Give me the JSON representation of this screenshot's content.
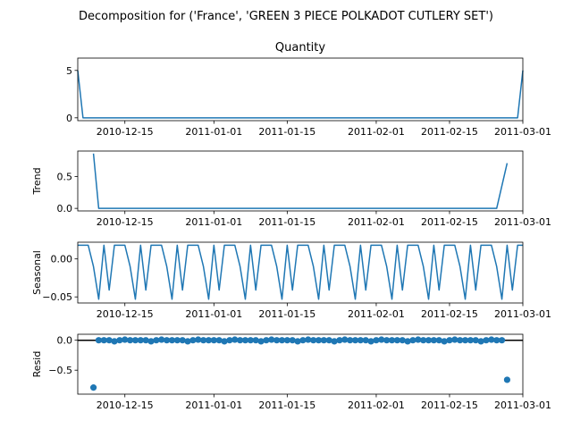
{
  "figure": {
    "suptitle": "Decomposition for ('France', 'GREEN 3 PIECE POLKADOT CUTLERY SET')"
  },
  "chart_data": [
    {
      "type": "line",
      "name": "observed",
      "title": "Quantity",
      "ylabel": "",
      "x_start": "2010-12-06",
      "x_end": "2011-03-01",
      "xticks": [
        "2010-12-15",
        "2011-01-01",
        "2011-01-15",
        "2011-02-01",
        "2011-02-15",
        "2011-03-01"
      ],
      "ylim": [
        -0.3,
        6.3
      ],
      "yticks": [
        0,
        5
      ],
      "color": "#1f77b4",
      "points": [
        {
          "x": "2010-12-06",
          "y": 5
        },
        {
          "x": "2010-12-07",
          "y": 0
        },
        {
          "x": "2011-02-28",
          "y": 0
        },
        {
          "x": "2011-03-01",
          "y": 5
        }
      ]
    },
    {
      "type": "line",
      "name": "trend",
      "title": "",
      "ylabel": "Trend",
      "x_start": "2010-12-06",
      "x_end": "2011-03-01",
      "xticks": [
        "2010-12-15",
        "2011-01-01",
        "2011-01-15",
        "2011-02-01",
        "2011-02-15",
        "2011-03-01"
      ],
      "ylim": [
        -0.04,
        0.9
      ],
      "yticks": [
        "0.0",
        "0.5"
      ],
      "color": "#1f77b4",
      "points": [
        {
          "x": "2010-12-09",
          "y": 0.86
        },
        {
          "x": "2010-12-10",
          "y": 0.0
        },
        {
          "x": "2011-02-24",
          "y": 0.0
        },
        {
          "x": "2011-02-26",
          "y": 0.71
        }
      ]
    },
    {
      "type": "line",
      "name": "seasonal",
      "title": "",
      "ylabel": "Seasonal",
      "x_start": "2010-12-06",
      "x_end": "2011-03-01",
      "xticks": [
        "2010-12-15",
        "2011-01-01",
        "2011-01-15",
        "2011-02-01",
        "2011-02-15",
        "2011-03-01"
      ],
      "ylim": [
        -0.058,
        0.022
      ],
      "yticks": [
        "0.00",
        "−0.05"
      ],
      "color": "#1f77b4",
      "period": 7,
      "weekly_pattern": [
        0.018,
        0.018,
        0.018,
        -0.01,
        -0.053,
        0.018,
        -0.041
      ]
    },
    {
      "type": "scatter",
      "name": "resid",
      "title": "",
      "ylabel": "Resid",
      "x_start": "2010-12-06",
      "x_end": "2011-03-01",
      "xticks": [
        "2010-12-15",
        "2011-01-01",
        "2011-01-15",
        "2011-02-01",
        "2011-02-15",
        "2011-03-01"
      ],
      "ylim": [
        -0.9,
        0.1
      ],
      "yticks": [
        "0.0",
        "−0.5"
      ],
      "color": "#1f77b4",
      "zero_line": true,
      "outliers": [
        {
          "x": "2010-12-09",
          "y": -0.79
        },
        {
          "x": "2011-02-26",
          "y": -0.66
        }
      ],
      "weekly_resid": [
        -0.018,
        0.0,
        0.01,
        0.0,
        0.0,
        0.0,
        0.0
      ]
    }
  ]
}
